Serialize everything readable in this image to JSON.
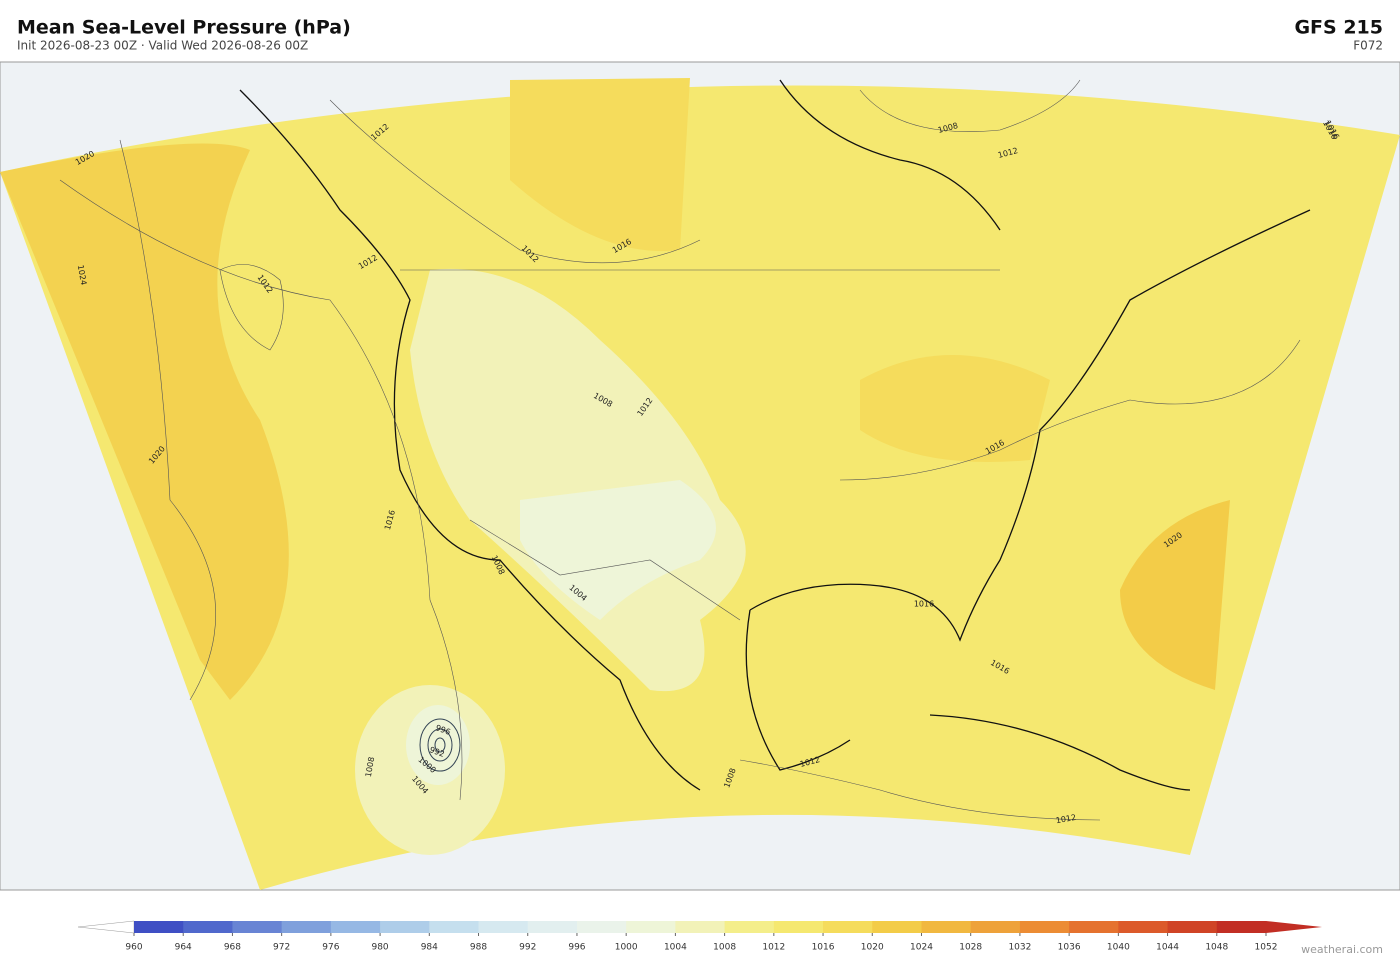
{
  "header": {
    "title": "Mean Sea-Level Pressure  (hPa)",
    "subtitle": "Init 2026-08-23 00Z  ·  Valid Wed 2026-08-26 00Z",
    "model": "GFS  215",
    "forecast_hour": "F072"
  },
  "colorbar": {
    "ticks": [
      960,
      964,
      968,
      972,
      976,
      980,
      984,
      988,
      992,
      996,
      1000,
      1004,
      1008,
      1012,
      1016,
      1020,
      1024,
      1028,
      1032,
      1036,
      1040,
      1044,
      1048,
      1052
    ],
    "colors": [
      "#3f4fc4",
      "#5068cc",
      "#6884d4",
      "#7fa0dc",
      "#96b8e4",
      "#aecde9",
      "#c5dfee",
      "#d6e9f0",
      "#e2efef",
      "#eaf3ea",
      "#eef5d8",
      "#f2f2b8",
      "#f4ee8a",
      "#f5e870",
      "#f5dc5c",
      "#f3cc48",
      "#f1b840",
      "#eea23a",
      "#ec8c34",
      "#e5722f",
      "#dc5a2a",
      "#d04426",
      "#c22e24"
    ]
  },
  "contour_labels": [
    "1020",
    "1024",
    "1012",
    "1020",
    "1016",
    "1012",
    "1012",
    "1016",
    "1012",
    "1008",
    "1012",
    "1016",
    "1008",
    "1012",
    "1008",
    "1004",
    "1016",
    "1016",
    "1016",
    "1020",
    "1016",
    "1012",
    "1008",
    "1012",
    "1008",
    "996",
    "992",
    "1000",
    "1004"
  ],
  "attribution": "weatherai.com"
}
